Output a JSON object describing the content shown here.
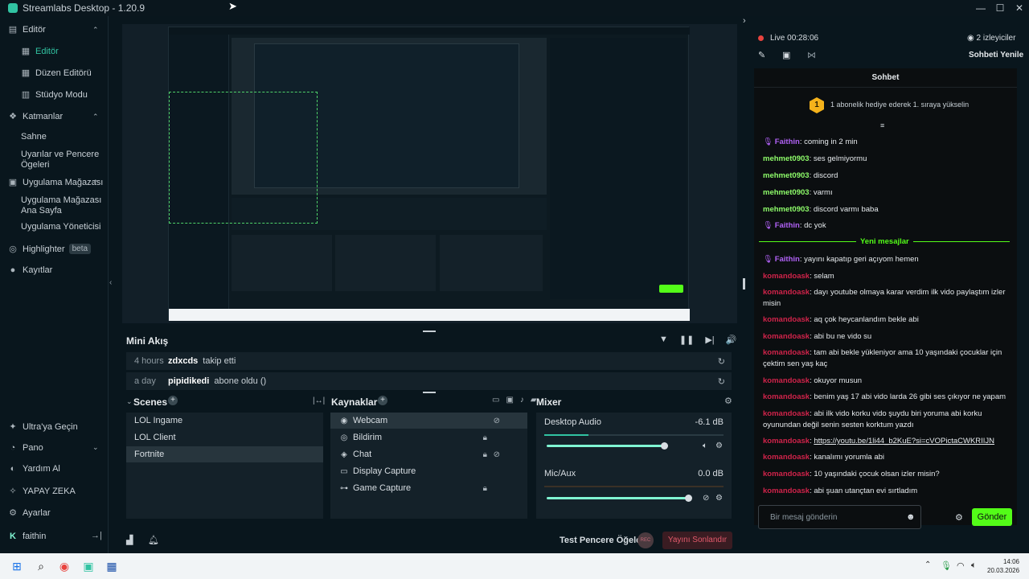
{
  "window": {
    "title": "Streamlabs Desktop - 1.20.9"
  },
  "sidebar": {
    "editor_head": "Editör",
    "editor_items": [
      "Editör",
      "Düzen Editörü",
      "Stüdyo Modu"
    ],
    "layers_head": "Katmanlar",
    "layers_items": [
      "Sahne",
      "Uyarılar ve Pencere Ögeleri"
    ],
    "store_head": "Uygulama Mağazası",
    "store_items": [
      "Uygulama Mağazası Ana Sayfa",
      "Uygulama Yöneticisi"
    ],
    "highlighter": "Highlighter",
    "beta": "beta",
    "records": "Kayıtlar",
    "ultra": "Ultra'ya Geçin",
    "dashboard": "Pano",
    "help": "Yardım Al",
    "ai": "YAPAY ZEKA",
    "settings": "Ayarlar",
    "user": "faithin"
  },
  "miniflow": {
    "title": "Mini Akış",
    "rows": [
      {
        "time": "4 hours",
        "name": "zdxcds",
        "action": "takip etti"
      },
      {
        "time": "a day",
        "name": "pipidikedi",
        "action": "abone oldu ()"
      }
    ]
  },
  "scenes": {
    "title": "Scenes",
    "items": [
      "LOL Ingame",
      "LOL Client",
      "Fortnite"
    ]
  },
  "sources": {
    "title": "Kaynaklar",
    "items": [
      "Webcam",
      "Bildirim",
      "Chat",
      "Display Capture",
      "Game Capture"
    ]
  },
  "mixer": {
    "title": "Mixer",
    "channels": [
      {
        "name": "Desktop Audio",
        "db": "-6.1 dB"
      },
      {
        "name": "Mic/Aux",
        "db": "0.0 dB"
      }
    ]
  },
  "statusbar": {
    "test_widgets": "Test Pencere Öğeleri",
    "rec": "REC",
    "end_stream": "Yayını Sonlandır"
  },
  "chat": {
    "live": "Live",
    "live_time": "00:28:06",
    "viewers": "2 izleyiciler",
    "refresh": "Sohbeti Yenile",
    "title": "Sohbet",
    "goal_rank": "1",
    "goal": "1 abonelik hediye ederek 1. sıraya yükselin",
    "new_messages": "Yeni mesajlar",
    "messages_old": [
      {
        "user": "Faithin",
        "text": ": coming in 2 min",
        "color": "purple"
      },
      {
        "user": "mehmet0903",
        "text": ": ses gelmiyormu",
        "color": "green"
      },
      {
        "user": "mehmet0903",
        "text": ": discord",
        "color": "green"
      },
      {
        "user": "mehmet0903",
        "text": ": varmı",
        "color": "green"
      },
      {
        "user": "mehmet0903",
        "text": ": discord varmı baba",
        "color": "green"
      },
      {
        "user": "Faithin",
        "text": ": dc yok",
        "color": "purple"
      }
    ],
    "messages_new": [
      {
        "user": "Faithin",
        "text": ": yayını kapatıp geri açıyom hemen",
        "color": "purple"
      },
      {
        "user": "komandoask",
        "text": ": selam",
        "color": "red"
      },
      {
        "user": "komandoask",
        "text": ": dayı youtube olmaya karar verdim ilk vido paylaştım izler misin",
        "color": "red"
      },
      {
        "user": "komandoask",
        "text": ": aq çok heycanlandım bekle abi",
        "color": "red"
      },
      {
        "user": "komandoask",
        "text": ": abi bu ne vido su",
        "color": "red"
      },
      {
        "user": "komandoask",
        "text": ": tam abi bekle yükleniyor ama 10 yaşındaki çocuklar için çektim sen yaş kaç",
        "color": "red"
      },
      {
        "user": "komandoask",
        "text": ": okuyor musun",
        "color": "red"
      },
      {
        "user": "komandoask",
        "text": ": benim yaş 17 abi vido larda 26 gibi ses çıkıyor ne yapam",
        "color": "red"
      },
      {
        "user": "komandoask",
        "text": ": abi ilk vido korku vido şuydu biri yoruma abi korku oyunundan değil senin sesten korktum yazdı",
        "color": "red"
      },
      {
        "user": "komandoask",
        "text": ": ",
        "link": "https://youtu.be/1li44_b2KuE?si=cVOPictaCWKRIIJN",
        "color": "red"
      },
      {
        "user": "komandoask",
        "text": ": kanalımı yorumla abi",
        "color": "red"
      },
      {
        "user": "komandoask",
        "text": ": 10 yaşındaki çocuk olsan izler misin?",
        "color": "red"
      },
      {
        "user": "komandoask",
        "text": ": abi şuan utançtan evi sırtladım",
        "color": "red"
      }
    ],
    "input_placeholder": "Bir mesaj gönderin",
    "send": "Gönder"
  },
  "taskbar": {
    "time": "14:06",
    "date": "20.03.2026"
  },
  "colors": {
    "accent": "#31c3a2",
    "send": "#80f5d2",
    "end": "#d0234a"
  },
  "icons": [
    "windows-start-icon",
    "search-icon",
    "chrome-icon",
    "streamlabs-icon"
  ]
}
